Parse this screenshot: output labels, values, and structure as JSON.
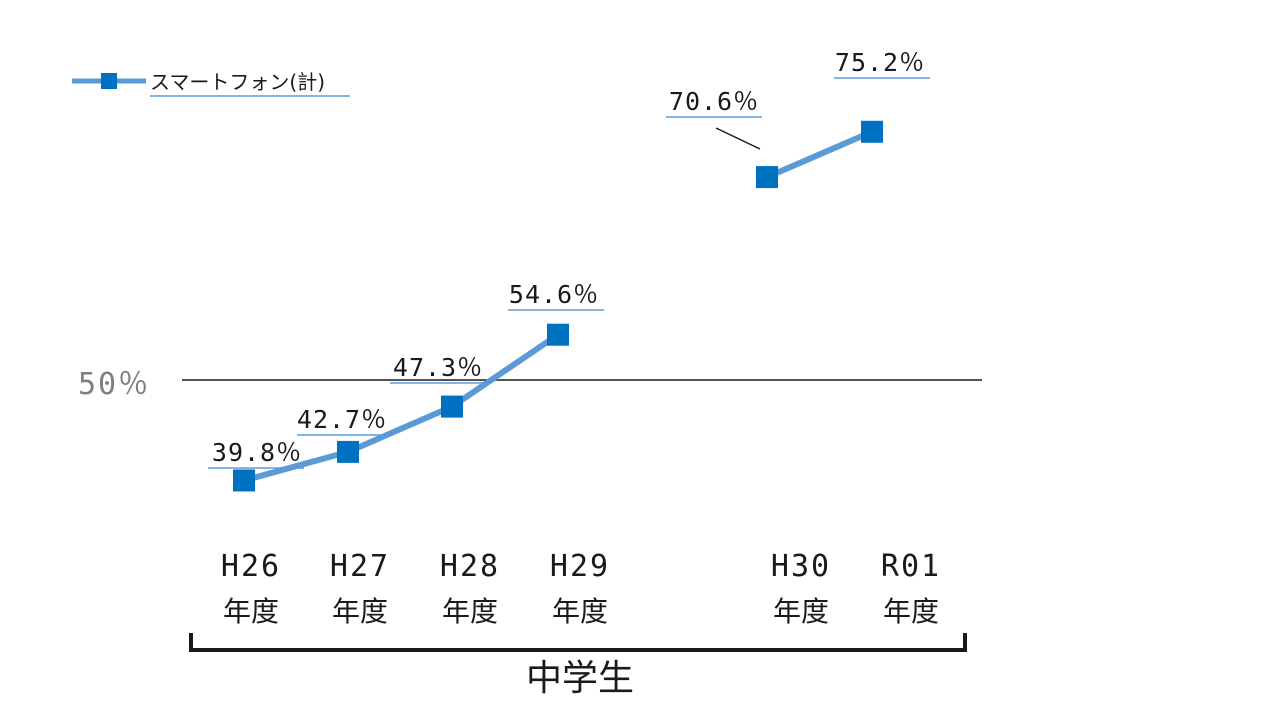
{
  "chart_data": {
    "type": "line",
    "categories": [
      "H26",
      "H27",
      "H28",
      "H29",
      "H30",
      "R01"
    ],
    "category_suffix": "年度",
    "group_label": "中学生",
    "series": [
      {
        "name": "スマートフォン(計)",
        "values": [
          39.8,
          42.7,
          47.3,
          54.6,
          70.6,
          75.2
        ],
        "labels": [
          "39.8％",
          "42.7％",
          "47.3％",
          "54.6％",
          "70.6％",
          "75.2％"
        ],
        "color": "#5b9bd5",
        "marker_color": "#0070c0"
      }
    ],
    "reference_line": {
      "value": 50,
      "label": "50％"
    },
    "legend_position": "top-left",
    "grid": false
  }
}
